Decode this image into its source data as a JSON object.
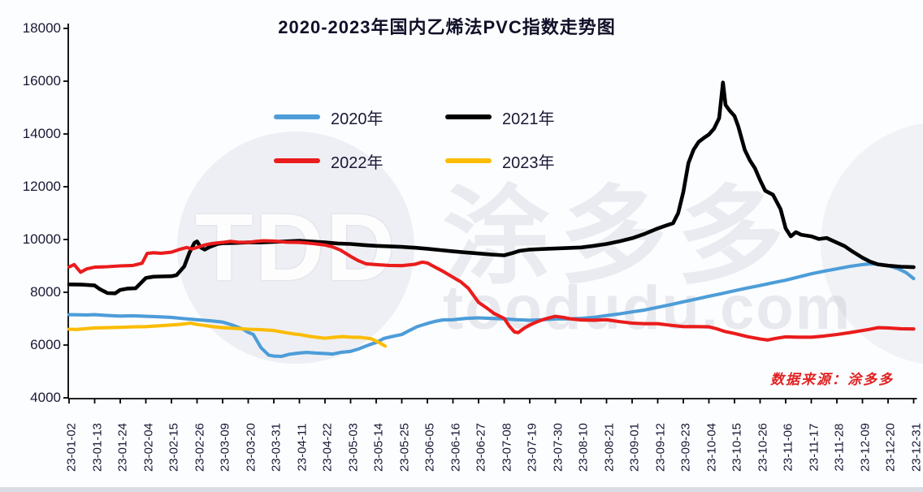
{
  "title": "2020-2023年国内乙烯法PVC指数走势图",
  "source_note": "数据来源：涂多多",
  "watermark": {
    "logo_text": "TDD",
    "cn_text": "涂多多",
    "site_text": "toodudu.com"
  },
  "y_axis": {
    "min": 4000,
    "max": 18000,
    "step": 2000,
    "tick_labels": [
      "18000",
      "16000",
      "14000",
      "12000",
      "10000",
      "8000",
      "6000",
      "4000"
    ]
  },
  "chart_data": {
    "type": "line",
    "title": "2020-2023年国内乙烯法PVC指数走势图",
    "xlabel": "",
    "ylabel": "",
    "ylim": [
      4000,
      18000
    ],
    "grid": false,
    "legend_position": "upper-left-inside",
    "x_note": "points are [tickIndex, value]; tickIndex is fractional position into categories (ticks every 11 days)",
    "categories": [
      "23-01-02",
      "23-01-13",
      "23-01-24",
      "23-02-04",
      "23-02-15",
      "23-02-26",
      "23-03-09",
      "23-03-20",
      "23-03-31",
      "23-04-11",
      "23-04-22",
      "23-05-03",
      "23-05-14",
      "23-05-25",
      "23-06-05",
      "23-06-16",
      "23-06-27",
      "23-07-08",
      "23-07-19",
      "23-07-30",
      "23-08-10",
      "23-08-21",
      "23-09-01",
      "23-09-12",
      "23-09-23",
      "23-10-04",
      "23-10-15",
      "23-10-26",
      "23-11-06",
      "23-11-17",
      "23-11-28",
      "23-12-09",
      "23-12-20",
      "23-12-31"
    ],
    "series": [
      {
        "name": "2020年",
        "color": "#4D9DD8",
        "points": [
          [
            0,
            7150
          ],
          [
            0.7,
            7140
          ],
          [
            1,
            7150
          ],
          [
            1.5,
            7120
          ],
          [
            2,
            7100
          ],
          [
            2.5,
            7110
          ],
          [
            3,
            7090
          ],
          [
            3.5,
            7070
          ],
          [
            4,
            7050
          ],
          [
            4.5,
            7000
          ],
          [
            5,
            6960
          ],
          [
            5.5,
            6920
          ],
          [
            6,
            6870
          ],
          [
            6.4,
            6750
          ],
          [
            6.8,
            6600
          ],
          [
            7,
            6480
          ],
          [
            7.2,
            6400
          ],
          [
            7.5,
            5900
          ],
          [
            7.8,
            5620
          ],
          [
            8,
            5580
          ],
          [
            8.3,
            5570
          ],
          [
            8.6,
            5650
          ],
          [
            9,
            5700
          ],
          [
            9.3,
            5720
          ],
          [
            9.6,
            5700
          ],
          [
            10,
            5680
          ],
          [
            10.3,
            5660
          ],
          [
            10.6,
            5720
          ],
          [
            11,
            5760
          ],
          [
            11.3,
            5850
          ],
          [
            11.7,
            6000
          ],
          [
            12,
            6100
          ],
          [
            12.3,
            6250
          ],
          [
            12.6,
            6320
          ],
          [
            13,
            6400
          ],
          [
            13.3,
            6550
          ],
          [
            13.6,
            6700
          ],
          [
            14,
            6820
          ],
          [
            14.3,
            6900
          ],
          [
            14.6,
            6950
          ],
          [
            15,
            6960
          ],
          [
            15.5,
            7010
          ],
          [
            16,
            7030
          ],
          [
            16.5,
            7010
          ],
          [
            17,
            6990
          ],
          [
            17.5,
            6960
          ],
          [
            18,
            6940
          ],
          [
            18.5,
            6960
          ],
          [
            19,
            6990
          ],
          [
            19.5,
            6990
          ],
          [
            20,
            7010
          ],
          [
            20.5,
            7050
          ],
          [
            21,
            7120
          ],
          [
            21.5,
            7180
          ],
          [
            22,
            7260
          ],
          [
            22.5,
            7330
          ],
          [
            23,
            7430
          ],
          [
            23.5,
            7530
          ],
          [
            24,
            7640
          ],
          [
            24.5,
            7740
          ],
          [
            25,
            7850
          ],
          [
            25.5,
            7950
          ],
          [
            26,
            8060
          ],
          [
            26.5,
            8160
          ],
          [
            27,
            8260
          ],
          [
            27.5,
            8360
          ],
          [
            28,
            8460
          ],
          [
            28.5,
            8580
          ],
          [
            29,
            8700
          ],
          [
            29.5,
            8800
          ],
          [
            30,
            8890
          ],
          [
            30.5,
            8980
          ],
          [
            31,
            9050
          ],
          [
            31.3,
            9080
          ],
          [
            31.7,
            9060
          ],
          [
            32,
            9010
          ],
          [
            32.4,
            8890
          ],
          [
            32.7,
            8750
          ],
          [
            33,
            8520
          ]
        ]
      },
      {
        "name": "2021年",
        "color": "#000000",
        "points": [
          [
            0,
            8300
          ],
          [
            0.5,
            8290
          ],
          [
            1,
            8260
          ],
          [
            1.2,
            8120
          ],
          [
            1.5,
            7970
          ],
          [
            1.8,
            7960
          ],
          [
            2,
            8090
          ],
          [
            2.3,
            8140
          ],
          [
            2.6,
            8150
          ],
          [
            3,
            8540
          ],
          [
            3.3,
            8590
          ],
          [
            3.6,
            8600
          ],
          [
            4,
            8610
          ],
          [
            4.2,
            8650
          ],
          [
            4.5,
            8980
          ],
          [
            4.7,
            9500
          ],
          [
            4.9,
            9870
          ],
          [
            5,
            9930
          ],
          [
            5.15,
            9700
          ],
          [
            5.3,
            9620
          ],
          [
            5.5,
            9720
          ],
          [
            5.8,
            9830
          ],
          [
            6,
            9860
          ],
          [
            6.5,
            9870
          ],
          [
            7,
            9890
          ],
          [
            7.5,
            9890
          ],
          [
            8,
            9910
          ],
          [
            8.5,
            9930
          ],
          [
            9,
            9950
          ],
          [
            9.5,
            9920
          ],
          [
            10,
            9890
          ],
          [
            10.5,
            9850
          ],
          [
            11,
            9830
          ],
          [
            11.5,
            9790
          ],
          [
            12,
            9760
          ],
          [
            12.5,
            9740
          ],
          [
            13,
            9720
          ],
          [
            13.5,
            9690
          ],
          [
            14,
            9650
          ],
          [
            14.5,
            9600
          ],
          [
            15,
            9550
          ],
          [
            15.5,
            9510
          ],
          [
            16,
            9470
          ],
          [
            16.5,
            9430
          ],
          [
            17,
            9400
          ],
          [
            17.3,
            9480
          ],
          [
            17.6,
            9570
          ],
          [
            18,
            9620
          ],
          [
            18.5,
            9640
          ],
          [
            19,
            9660
          ],
          [
            19.5,
            9680
          ],
          [
            20,
            9700
          ],
          [
            20.5,
            9760
          ],
          [
            21,
            9830
          ],
          [
            21.5,
            9930
          ],
          [
            22,
            10050
          ],
          [
            22.5,
            10220
          ],
          [
            23,
            10420
          ],
          [
            23.3,
            10520
          ],
          [
            23.6,
            10620
          ],
          [
            23.8,
            11000
          ],
          [
            24,
            11800
          ],
          [
            24.2,
            12900
          ],
          [
            24.4,
            13400
          ],
          [
            24.6,
            13700
          ],
          [
            24.8,
            13850
          ],
          [
            25,
            13980
          ],
          [
            25.2,
            14200
          ],
          [
            25.4,
            14600
          ],
          [
            25.55,
            15950
          ],
          [
            25.65,
            15100
          ],
          [
            25.8,
            14900
          ],
          [
            26,
            14680
          ],
          [
            26.15,
            14280
          ],
          [
            26.4,
            13400
          ],
          [
            26.6,
            13000
          ],
          [
            26.8,
            12700
          ],
          [
            27,
            12250
          ],
          [
            27.2,
            11850
          ],
          [
            27.5,
            11700
          ],
          [
            27.8,
            11150
          ],
          [
            28,
            10420
          ],
          [
            28.2,
            10120
          ],
          [
            28.4,
            10280
          ],
          [
            28.6,
            10180
          ],
          [
            29,
            10120
          ],
          [
            29.3,
            10020
          ],
          [
            29.6,
            10060
          ],
          [
            30,
            9880
          ],
          [
            30.3,
            9750
          ],
          [
            30.6,
            9550
          ],
          [
            31,
            9310
          ],
          [
            31.3,
            9160
          ],
          [
            31.6,
            9060
          ],
          [
            32,
            9010
          ],
          [
            32.5,
            8970
          ],
          [
            33,
            8950
          ]
        ]
      },
      {
        "name": "2022年",
        "color": "#EA1C1C",
        "points": [
          [
            0,
            8960
          ],
          [
            0.2,
            9050
          ],
          [
            0.45,
            8760
          ],
          [
            0.7,
            8890
          ],
          [
            1,
            8950
          ],
          [
            1.5,
            8970
          ],
          [
            2,
            9000
          ],
          [
            2.5,
            9020
          ],
          [
            2.85,
            9100
          ],
          [
            3.05,
            9470
          ],
          [
            3.3,
            9500
          ],
          [
            3.6,
            9480
          ],
          [
            4,
            9520
          ],
          [
            4.3,
            9620
          ],
          [
            4.6,
            9700
          ],
          [
            4.8,
            9640
          ],
          [
            5,
            9700
          ],
          [
            5.3,
            9790
          ],
          [
            5.6,
            9850
          ],
          [
            6,
            9890
          ],
          [
            6.3,
            9930
          ],
          [
            6.6,
            9900
          ],
          [
            7,
            9890
          ],
          [
            7.3,
            9930
          ],
          [
            7.6,
            9950
          ],
          [
            8,
            9940
          ],
          [
            8.5,
            9900
          ],
          [
            9,
            9890
          ],
          [
            9.5,
            9850
          ],
          [
            10,
            9790
          ],
          [
            10.3,
            9720
          ],
          [
            10.6,
            9600
          ],
          [
            11,
            9360
          ],
          [
            11.3,
            9200
          ],
          [
            11.6,
            9080
          ],
          [
            12,
            9050
          ],
          [
            12.5,
            9020
          ],
          [
            13,
            9010
          ],
          [
            13.5,
            9060
          ],
          [
            13.8,
            9140
          ],
          [
            14,
            9110
          ],
          [
            14.3,
            8950
          ],
          [
            14.6,
            8800
          ],
          [
            15,
            8570
          ],
          [
            15.3,
            8400
          ],
          [
            15.6,
            8150
          ],
          [
            16,
            7620
          ],
          [
            16.3,
            7420
          ],
          [
            16.6,
            7200
          ],
          [
            17,
            7010
          ],
          [
            17.2,
            6720
          ],
          [
            17.4,
            6500
          ],
          [
            17.55,
            6470
          ],
          [
            17.8,
            6650
          ],
          [
            18,
            6760
          ],
          [
            18.3,
            6890
          ],
          [
            18.6,
            6990
          ],
          [
            19,
            7090
          ],
          [
            19.3,
            7050
          ],
          [
            19.6,
            6990
          ],
          [
            20,
            6950
          ],
          [
            20.5,
            6940
          ],
          [
            21,
            6960
          ],
          [
            21.5,
            6890
          ],
          [
            22,
            6830
          ],
          [
            22.5,
            6810
          ],
          [
            23,
            6810
          ],
          [
            23.5,
            6750
          ],
          [
            24,
            6700
          ],
          [
            24.5,
            6700
          ],
          [
            25,
            6690
          ],
          [
            25.3,
            6620
          ],
          [
            25.6,
            6520
          ],
          [
            26,
            6440
          ],
          [
            26.5,
            6320
          ],
          [
            27,
            6230
          ],
          [
            27.3,
            6190
          ],
          [
            27.6,
            6250
          ],
          [
            28,
            6310
          ],
          [
            28.5,
            6300
          ],
          [
            29,
            6300
          ],
          [
            29.5,
            6340
          ],
          [
            30,
            6400
          ],
          [
            30.5,
            6470
          ],
          [
            31,
            6550
          ],
          [
            31.3,
            6600
          ],
          [
            31.6,
            6660
          ],
          [
            32,
            6650
          ],
          [
            32.5,
            6620
          ],
          [
            33,
            6610
          ]
        ]
      },
      {
        "name": "2023年",
        "color": "#FBBC05",
        "points": [
          [
            0,
            6600
          ],
          [
            0.3,
            6590
          ],
          [
            0.6,
            6620
          ],
          [
            1,
            6650
          ],
          [
            1.5,
            6660
          ],
          [
            2,
            6670
          ],
          [
            2.5,
            6690
          ],
          [
            3,
            6700
          ],
          [
            3.5,
            6730
          ],
          [
            4,
            6760
          ],
          [
            4.4,
            6790
          ],
          [
            4.75,
            6830
          ],
          [
            5,
            6780
          ],
          [
            5.3,
            6740
          ],
          [
            5.6,
            6700
          ],
          [
            6,
            6660
          ],
          [
            6.5,
            6630
          ],
          [
            7,
            6600
          ],
          [
            7.5,
            6580
          ],
          [
            8,
            6550
          ],
          [
            8.4,
            6480
          ],
          [
            8.8,
            6420
          ],
          [
            9,
            6400
          ],
          [
            9.4,
            6330
          ],
          [
            9.8,
            6280
          ],
          [
            10,
            6260
          ],
          [
            10.4,
            6300
          ],
          [
            10.7,
            6320
          ],
          [
            11,
            6300
          ],
          [
            11.4,
            6290
          ],
          [
            11.8,
            6240
          ],
          [
            12,
            6150
          ],
          [
            12.2,
            6050
          ],
          [
            12.35,
            5960
          ]
        ]
      }
    ]
  }
}
